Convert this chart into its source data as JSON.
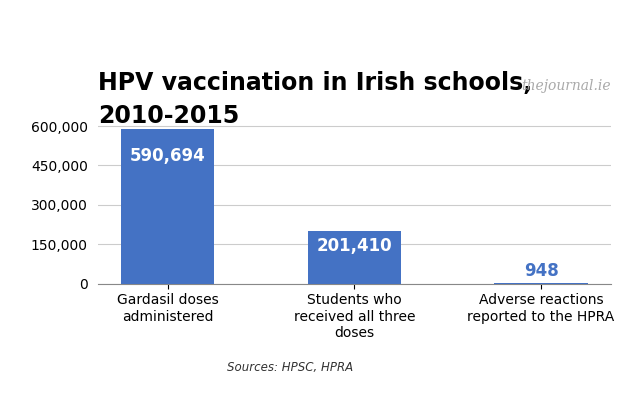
{
  "title_line1": "HPV vaccination in Irish schools,",
  "title_line2": "2010-2015",
  "categories": [
    "Gardasil doses\nadministered",
    "Students who\nreceived all three\ndoses",
    "Adverse reactions\nreported to the HPRA"
  ],
  "values": [
    590694,
    201410,
    948
  ],
  "bar_color": "#4472C4",
  "label_color_bar": "#ffffff",
  "label_color_outside": "#4472C4",
  "bar_labels": [
    "590,694",
    "201,410",
    "948"
  ],
  "ylim": [
    0,
    660000
  ],
  "yticks": [
    0,
    150000,
    300000,
    450000,
    600000
  ],
  "ytick_labels": [
    "0",
    "150,000",
    "300,000",
    "450,000",
    "600,000"
  ],
  "source_text": "Sources: HPSC, HPRA",
  "watermark": "thejournal.ie",
  "background_color": "#ffffff",
  "title_fontsize": 17,
  "bar_label_fontsize": 12,
  "tick_label_fontsize": 10,
  "source_fontsize": 8.5,
  "watermark_fontsize": 10
}
